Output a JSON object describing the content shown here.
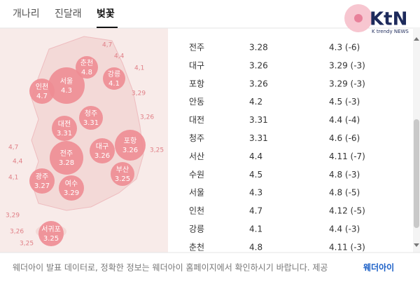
{
  "tabs": [
    "개나리",
    "진달래",
    "벚꽃"
  ],
  "logo": {
    "title": "KtN",
    "subtitle": "K trendy NEWS"
  },
  "map": {
    "cities": [
      {
        "name": "춘천",
        "date": "4.8"
      },
      {
        "name": "강릉",
        "date": "4.1"
      },
      {
        "name": "서울",
        "date": "4.3"
      },
      {
        "name": "인천",
        "date": "4.7"
      },
      {
        "name": "청주",
        "date": "3.31"
      },
      {
        "name": "대전",
        "date": "3.31"
      },
      {
        "name": "포항",
        "date": "3.26"
      },
      {
        "name": "대구",
        "date": "3.26"
      },
      {
        "name": "전주",
        "date": "3.28"
      },
      {
        "name": "부산",
        "date": "3.25"
      },
      {
        "name": "광주",
        "date": "3.27"
      },
      {
        "name": "여수",
        "date": "3.29"
      },
      {
        "name": "서귀포",
        "date": "3.25"
      }
    ],
    "isolines": [
      "4,7",
      "4,4",
      "4,1",
      "3,29",
      "3,26",
      "3,25",
      "4,7",
      "4,4",
      "4,1",
      "3,29",
      "3,26",
      "3,25"
    ]
  },
  "table": {
    "rows": [
      [
        "전주",
        "3.28",
        "4.3 (-6)"
      ],
      [
        "대구",
        "3.26",
        "3.29 (-3)"
      ],
      [
        "포항",
        "3.26",
        "3.29 (-3)"
      ],
      [
        "안동",
        "4.2",
        "4.5 (-3)"
      ],
      [
        "대전",
        "3.31",
        "4.4 (-4)"
      ],
      [
        "청주",
        "3.31",
        "4.6 (-6)"
      ],
      [
        "서산",
        "4.4",
        "4.11 (-7)"
      ],
      [
        "수원",
        "4.5",
        "4.8 (-3)"
      ],
      [
        "서울",
        "4.3",
        "4.8 (-5)"
      ],
      [
        "인천",
        "4.7",
        "4.12 (-5)"
      ],
      [
        "강릉",
        "4.1",
        "4.4 (-3)"
      ],
      [
        "춘천",
        "4.8",
        "4.11 (-3)"
      ]
    ]
  },
  "footer": {
    "text": "웨더아이 발표 데이터로, 정확한 정보는 웨더아이 홈페이지에서 확인하시기 바랍니다. 제공",
    "link": "웨더아이"
  }
}
